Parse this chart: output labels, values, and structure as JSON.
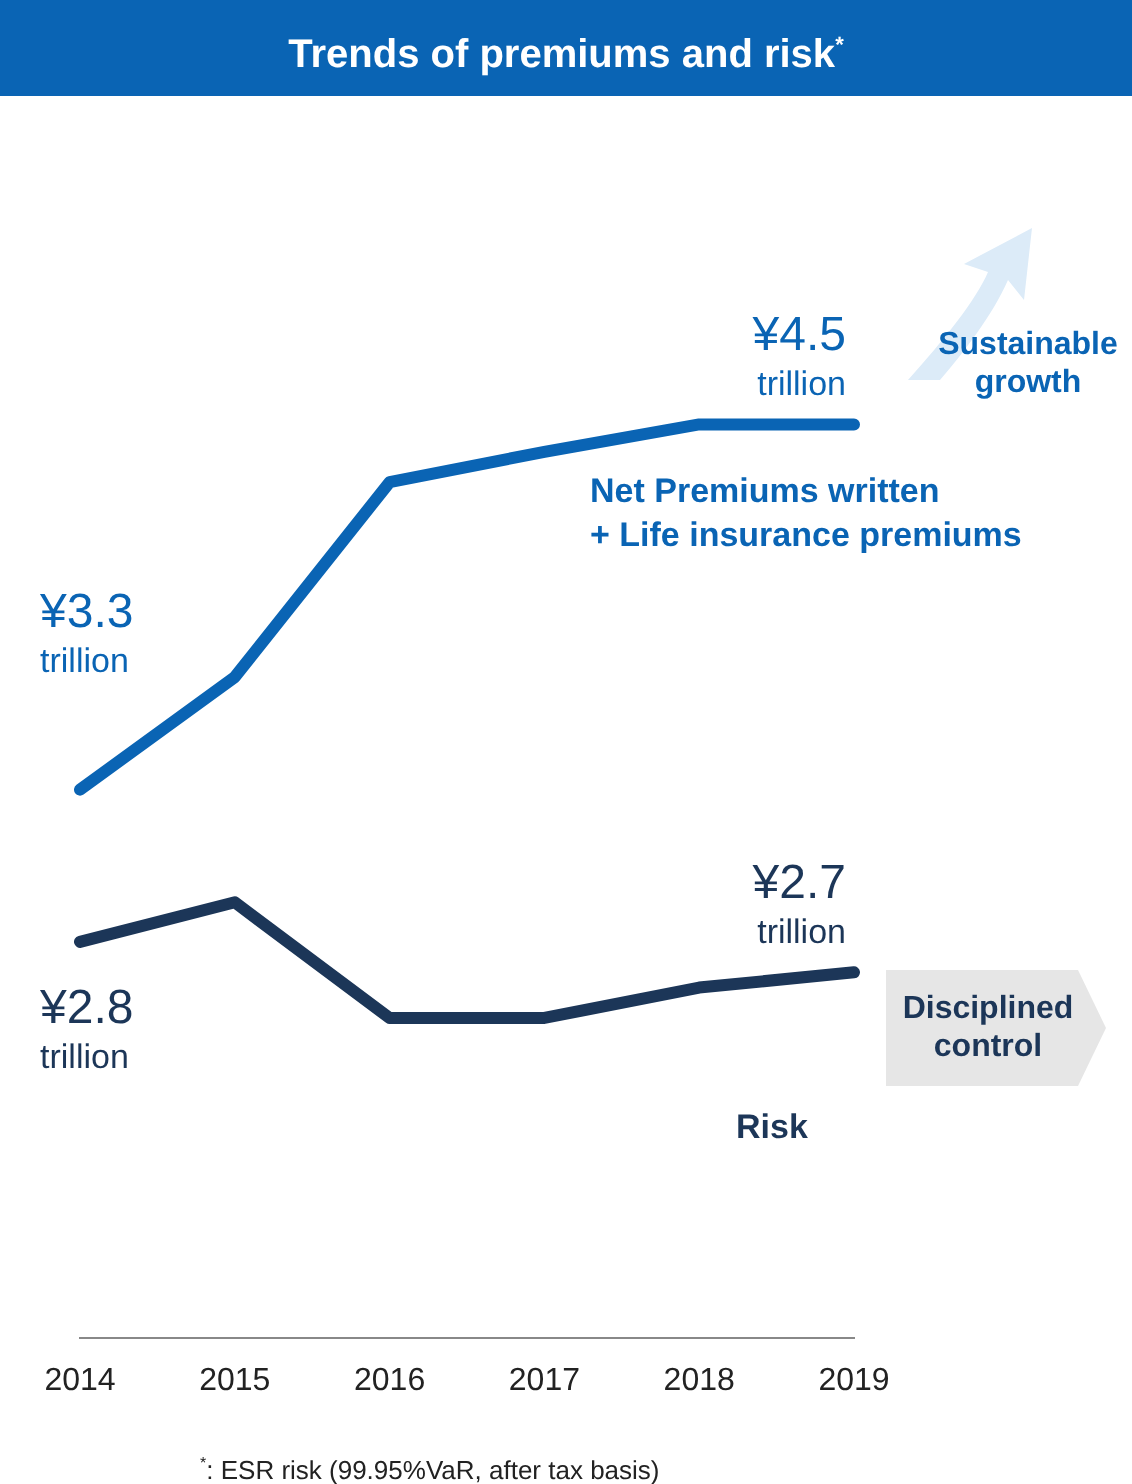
{
  "chart_data": {
    "type": "line",
    "title": "Trends of premiums and risk$^{*}$",
    "categories": [
      "2014",
      "2015",
      "2016",
      "2017",
      "2018",
      "2019"
    ],
    "series": [
      {
        "name": "Net Premiums written\n+ Life insurance premiums",
        "color": "#0a64b4",
        "values": [
          3.3,
          3.67,
          4.31,
          4.41,
          4.5,
          4.5
        ],
        "value_labels": [
          "¥3.3\ntrillion",
          null,
          null,
          null,
          null,
          "¥4.5\ntrillion"
        ]
      },
      {
        "name": "Risk",
        "color": "#1c3658",
        "values": [
          2.8,
          2.93,
          2.55,
          2.55,
          2.65,
          2.7
        ],
        "value_labels": [
          "¥2.8\ntrillion",
          null,
          null,
          null,
          null,
          "¥2.7\ntrillion"
        ]
      }
    ],
    "tick_labels": "x",
    "grid": false,
    "legend": false,
    "marker": "none",
    "annotations": [
      "Sustainable\ngrowth",
      "Disciplined\ncontrol",
      "$^{*}$: ESR risk (99.95%VaR, after tax basis)"
    ]
  }
}
